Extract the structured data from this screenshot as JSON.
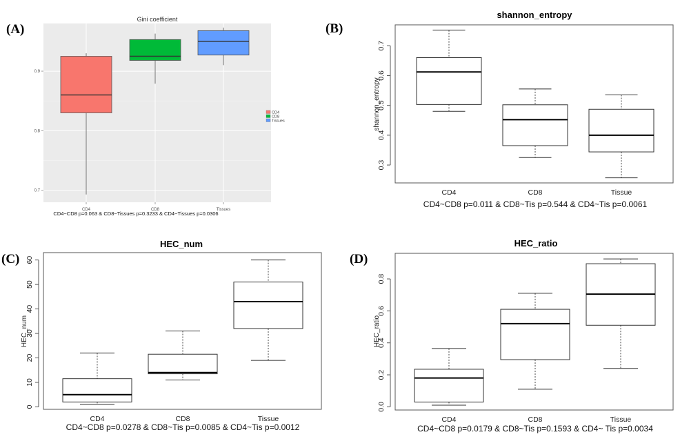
{
  "panel_labels": [
    "(A)",
    "(B)",
    "(C)",
    "(D)"
  ],
  "chart_data": [
    {
      "type": "boxplot",
      "panel": "(A)",
      "title": "Gini coefficient",
      "xlabel": "",
      "ylabel": "",
      "categories": [
        "CD4",
        "CD8",
        "Tissues"
      ],
      "ylim": [
        0.68,
        0.98
      ],
      "yticks": [
        "0.7",
        "0.8",
        "0.9"
      ],
      "grid": true,
      "legend_position": "right",
      "boxes": [
        {
          "name": "CD4",
          "min": 0.693,
          "q1": 0.83,
          "median": 0.86,
          "q3": 0.925,
          "max": 0.93,
          "fill": "#F8766D"
        },
        {
          "name": "CD8",
          "min": 0.879,
          "q1": 0.918,
          "median": 0.925,
          "q3": 0.953,
          "max": 0.963,
          "fill": "#00BA38"
        },
        {
          "name": "Tissues",
          "min": 0.91,
          "q1": 0.927,
          "median": 0.95,
          "q3": 0.968,
          "max": 0.973,
          "fill": "#619CFF"
        }
      ],
      "annotation": "CD4~CD8 p=0.063 & CD8~Tissues p=0.3233 & CD4~Tissues p=0.0306"
    },
    {
      "type": "boxplot",
      "panel": "(B)",
      "title": "shannon_entropy",
      "xlabel": "",
      "ylabel": "shannon_entropy",
      "categories": [
        "CD4",
        "CD8",
        "Tissue"
      ],
      "ylim": [
        0.24,
        0.77
      ],
      "yticks": [
        "0.3",
        "0.4",
        "0.5",
        "0.6",
        "0.7"
      ],
      "grid": false,
      "boxes": [
        {
          "name": "CD4",
          "min": 0.48,
          "q1": 0.503,
          "median": 0.612,
          "q3": 0.66,
          "max": 0.752
        },
        {
          "name": "CD8",
          "min": 0.325,
          "q1": 0.365,
          "median": 0.452,
          "q3": 0.502,
          "max": 0.555
        },
        {
          "name": "Tissue",
          "min": 0.257,
          "q1": 0.344,
          "median": 0.4,
          "q3": 0.487,
          "max": 0.535
        }
      ],
      "annotation": "CD4~CD8 p=0.011 & CD8~Tis p=0.544 & CD4~Tis p=0.0061"
    },
    {
      "type": "boxplot",
      "panel": "(C)",
      "title": "HEC_num",
      "xlabel": "",
      "ylabel": "HEC_num",
      "categories": [
        "CD4",
        "CD8",
        "Tissue"
      ],
      "ylim": [
        -1,
        63
      ],
      "yticks": [
        "0",
        "10",
        "20",
        "30",
        "40",
        "50",
        "60"
      ],
      "grid": false,
      "boxes": [
        {
          "name": "CD4",
          "min": 1,
          "q1": 2,
          "median": 5,
          "q3": 11.5,
          "max": 22
        },
        {
          "name": "CD8",
          "min": 11,
          "q1": 13.5,
          "median": 14,
          "q3": 21.5,
          "max": 31
        },
        {
          "name": "Tissue",
          "min": 19,
          "q1": 32,
          "median": 43,
          "q3": 51,
          "max": 60
        }
      ],
      "annotation": "CD4~CD8 p=0.0278 & CD8~Tis p=0.0085 & CD4~Tis p=0.0012"
    },
    {
      "type": "boxplot",
      "panel": "(D)",
      "title": "HEC_ratio",
      "xlabel": "",
      "ylabel": "HEC_ratio",
      "categories": [
        "CD4",
        "CD8",
        "Tissue"
      ],
      "ylim": [
        -0.02,
        0.96
      ],
      "yticks": [
        "0.0",
        "0.2",
        "0.4",
        "0.6",
        "0.8"
      ],
      "grid": false,
      "boxes": [
        {
          "name": "CD4",
          "min": 0.01,
          "q1": 0.03,
          "median": 0.18,
          "q3": 0.235,
          "max": 0.365
        },
        {
          "name": "CD8",
          "min": 0.11,
          "q1": 0.295,
          "median": 0.52,
          "q3": 0.61,
          "max": 0.71
        },
        {
          "name": "Tissue",
          "min": 0.24,
          "q1": 0.51,
          "median": 0.705,
          "q3": 0.895,
          "max": 0.925
        }
      ],
      "annotation": "CD4~CD8 p=0.0179 & CD8~Tis p=0.1593 & CD4~ Tis p=0.0034"
    }
  ]
}
